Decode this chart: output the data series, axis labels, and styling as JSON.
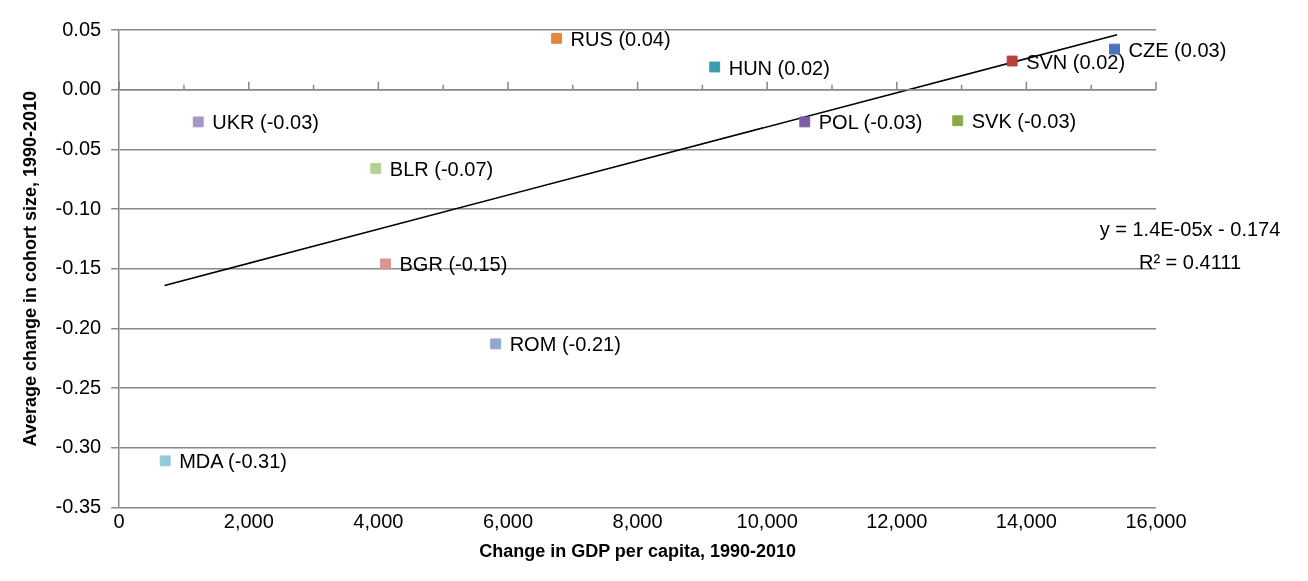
{
  "chart_data": {
    "type": "scatter",
    "xlabel": "Change in GDP per capita, 1990-2010",
    "ylabel": "Average change in cohort size, 1990-2010",
    "xlim": [
      0,
      16000
    ],
    "xticks": [
      {
        "value": 0,
        "label": "0"
      },
      {
        "value": 2000,
        "label": "2,000"
      },
      {
        "value": 4000,
        "label": "4,000"
      },
      {
        "value": 6000,
        "label": "6,000"
      },
      {
        "value": 8000,
        "label": "8,000"
      },
      {
        "value": 10000,
        "label": "10,000"
      },
      {
        "value": 12000,
        "label": "12,000"
      },
      {
        "value": 14000,
        "label": "14,000"
      },
      {
        "value": 16000,
        "label": "16,000"
      }
    ],
    "ylim": [
      -0.35,
      0.05
    ],
    "yticks": [
      {
        "value": -0.35,
        "label": "-0.35"
      },
      {
        "value": -0.3,
        "label": "-0.30"
      },
      {
        "value": -0.25,
        "label": "-0.25"
      },
      {
        "value": -0.2,
        "label": "-0.20"
      },
      {
        "value": -0.15,
        "label": "-0.15"
      },
      {
        "value": -0.1,
        "label": "-0.10"
      },
      {
        "value": -0.05,
        "label": "-0.05"
      },
      {
        "value": 0,
        "label": "0.00"
      },
      {
        "value": 0.05,
        "label": "0.05"
      }
    ],
    "grid": "y",
    "legend": false,
    "series": [
      {
        "marker": "square",
        "x": [
          6750,
          9190,
          15360,
          13780,
          1220,
          3960,
          4110,
          10580,
          12940,
          5810,
          710
        ],
        "values": [
          0.043,
          0.019,
          0.034,
          0.024,
          -0.027,
          -0.066,
          -0.146,
          -0.027,
          -0.026,
          -0.213,
          -0.311
        ],
        "colors": [
          "#e0883d",
          "#3a9db0",
          "#4a76b8",
          "#b8413e",
          "#a896c4",
          "#b6cf94",
          "#d99594",
          "#7b5da3",
          "#8aab4a",
          "#93a6d0",
          "#93c9d9"
        ],
        "value_labels": [
          "RUS (0.04)",
          "HUN (0.02)",
          "CZE (0.03)",
          "SVN (0.02)",
          "UKR (-0.03)",
          "BLR (-0.07)",
          "BGR (-0.15)",
          "POL (-0.03)",
          "SVK (-0.03)",
          "ROM (-0.21)",
          "MDA (-0.31)"
        ]
      },
      {
        "type": "line",
        "marker": "none",
        "x": [
          700,
          15400
        ],
        "values": [
          -0.164,
          0.046
        ],
        "color": "#000000"
      }
    ],
    "annotations": [
      "y = 1.4E-05x - 0.174",
      "R² = 0.4111"
    ]
  }
}
